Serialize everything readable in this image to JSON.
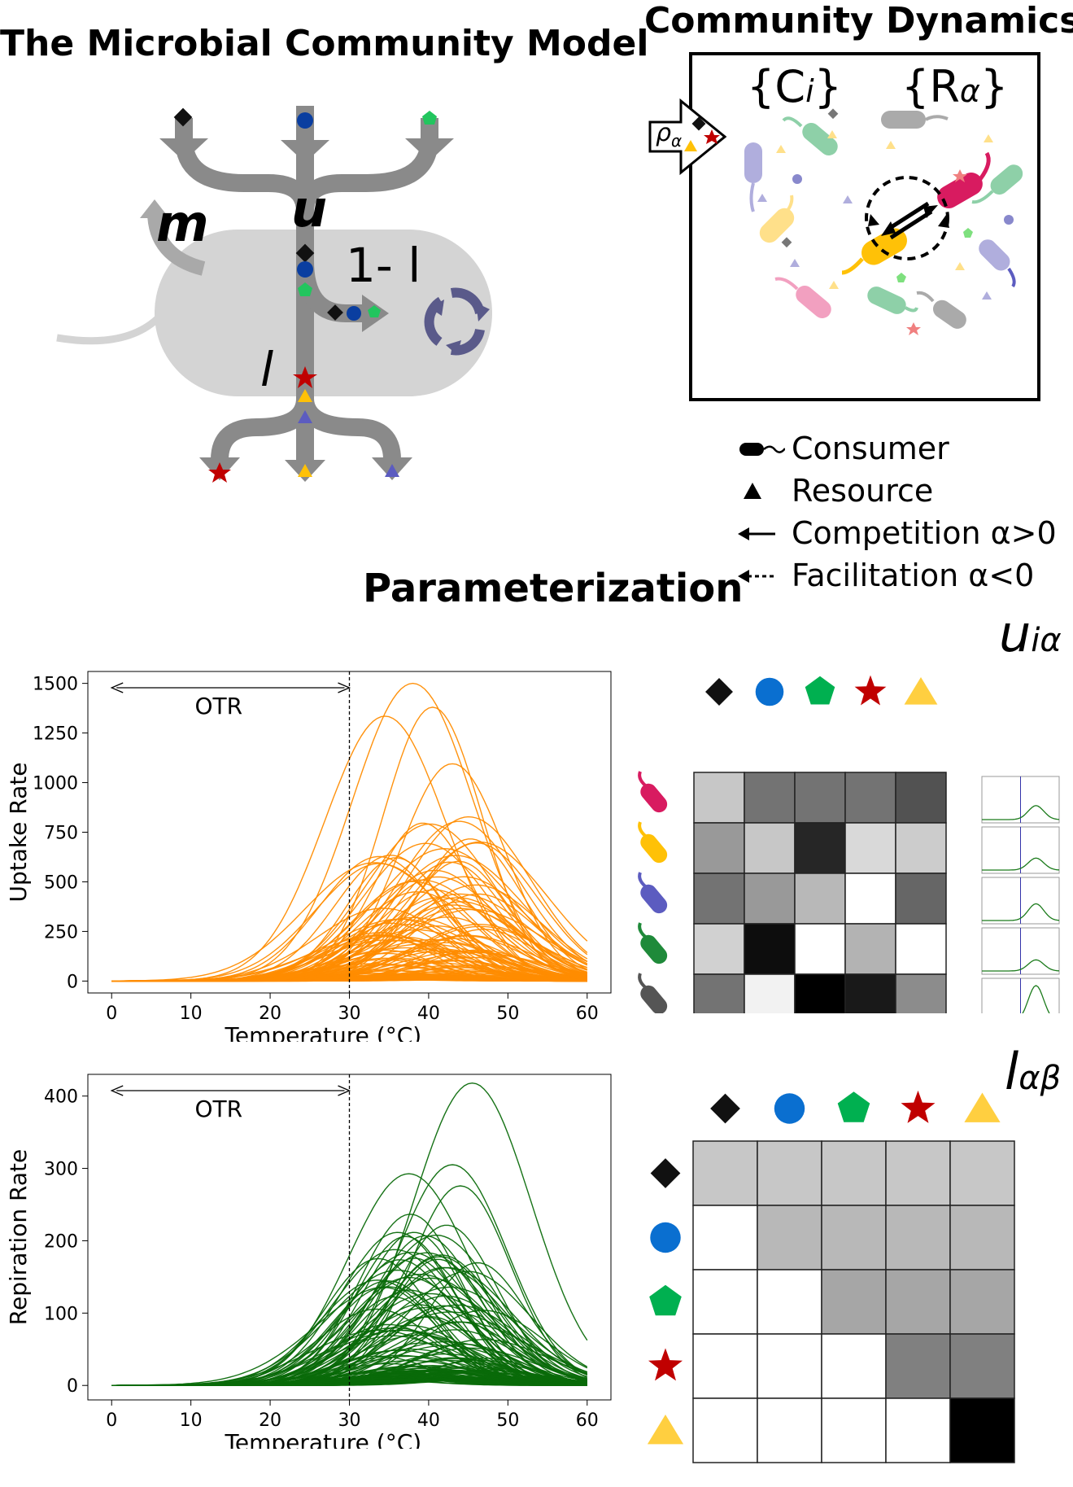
{
  "titles": {
    "model": "The Microbial Community Model",
    "dynamics": "Community Dynamics",
    "parameterization": "Parameterization"
  },
  "model_diagram": {
    "label_m": "m",
    "label_u": "u",
    "label_one_minus_l": "1- l",
    "label_l": "l"
  },
  "dynamics_box": {
    "set_consumers": "{C",
    "set_consumers_sub": "i",
    "set_resources": "{R",
    "set_resources_sub": "α",
    "supply": "ρ",
    "supply_sub": "α"
  },
  "legend": [
    {
      "icon": "consumer-icon",
      "label": "Consumer"
    },
    {
      "icon": "resource-icon",
      "label": "Resource"
    },
    {
      "icon": "solid-arrow-icon",
      "label": "Competition α>0"
    },
    {
      "icon": "dashed-arrow-icon",
      "label": "Facilitation α<0"
    }
  ],
  "matrix_labels": {
    "u": "u",
    "u_sub": "iα",
    "l": "l",
    "l_sub": "αβ"
  },
  "colors": {
    "uptake": "#ff8c00",
    "respiration": "#0a6a0a",
    "consumer_colors": [
      "#d81b60",
      "#ffc107",
      "#5c5cc0",
      "#1f8a3a",
      "#555555"
    ],
    "resource_colors": [
      "#111111",
      "#0a6fd0",
      "#00b050",
      "#c00000",
      "#ffcf40"
    ]
  },
  "chart_data": [
    {
      "type": "line",
      "xlabel": "Temperature (°C)",
      "ylabel": "Uptake Rate",
      "xlim": [
        -3,
        63
      ],
      "ylim": [
        -60,
        1560
      ],
      "xticks": [
        0,
        10,
        20,
        30,
        40,
        50,
        60
      ],
      "yticks": [
        0,
        250,
        500,
        750,
        1000,
        1250,
        1500
      ],
      "annotation": "OTR",
      "otr_range": [
        0,
        30
      ],
      "vline_x": 30,
      "curve_count": "many",
      "peak_temperature_range": [
        33,
        47
      ],
      "max_value": 1500
    },
    {
      "type": "line",
      "xlabel": "Temperature (°C)",
      "ylabel": "Repiration Rate",
      "xlim": [
        -3,
        63
      ],
      "ylim": [
        -20,
        430
      ],
      "xticks": [
        0,
        10,
        20,
        30,
        40,
        50,
        60
      ],
      "yticks": [
        0,
        100,
        200,
        300,
        400
      ],
      "annotation": "OTR",
      "otr_range": [
        0,
        30
      ],
      "vline_x": 30,
      "curve_count": "many",
      "peak_temperature_range": [
        33,
        47
      ],
      "max_value": 418
    },
    {
      "type": "heatmap",
      "name": "u matrix",
      "rows": 5,
      "cols": 5,
      "values": [
        [
          0.22,
          0.55,
          0.55,
          0.55,
          0.68
        ],
        [
          0.4,
          0.22,
          0.85,
          0.15,
          0.2
        ],
        [
          0.55,
          0.4,
          0.28,
          0.0,
          0.6
        ],
        [
          0.18,
          0.95,
          0.0,
          0.3,
          0.0
        ],
        [
          0.55,
          0.05,
          1.0,
          0.9,
          0.45
        ]
      ]
    },
    {
      "type": "heatmap",
      "name": "l matrix",
      "rows": 5,
      "cols": 5,
      "values": [
        [
          0.22,
          0.22,
          0.22,
          0.22,
          0.22
        ],
        [
          0.0,
          0.28,
          0.28,
          0.28,
          0.28
        ],
        [
          0.0,
          0.0,
          0.35,
          0.35,
          0.35
        ],
        [
          0.0,
          0.0,
          0.0,
          0.5,
          0.5
        ],
        [
          0.0,
          0.0,
          0.0,
          0.0,
          1.0
        ]
      ]
    }
  ]
}
